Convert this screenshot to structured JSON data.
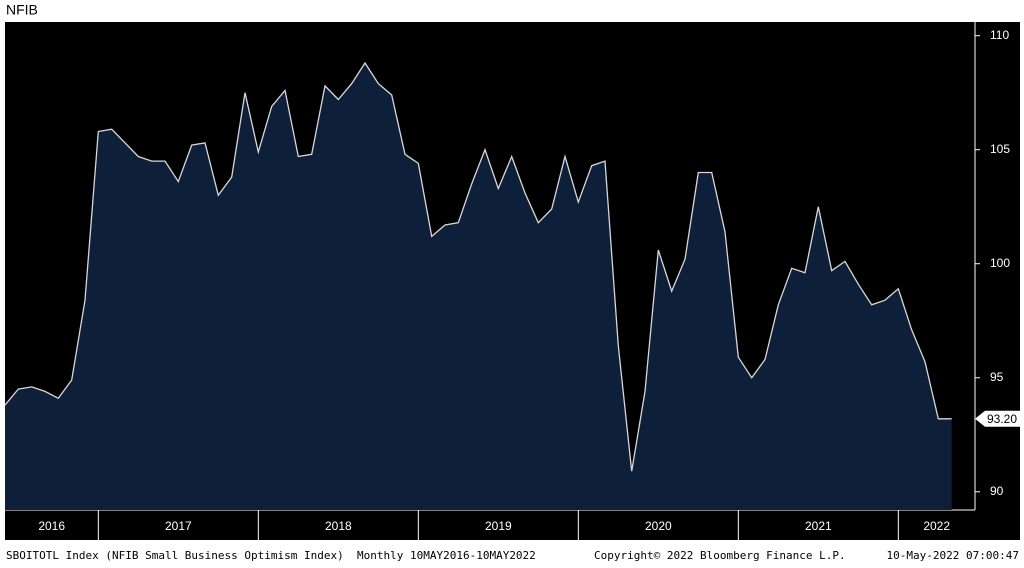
{
  "chart_data": {
    "type": "area",
    "title": "NFIB",
    "values": [
      93.8,
      94.5,
      94.6,
      94.4,
      94.1,
      94.9,
      98.4,
      105.8,
      105.9,
      105.3,
      104.7,
      104.5,
      104.5,
      103.6,
      105.2,
      105.3,
      103.0,
      103.8,
      107.5,
      104.9,
      106.9,
      107.6,
      104.7,
      104.8,
      107.8,
      107.2,
      107.9,
      108.8,
      107.9,
      107.4,
      104.8,
      104.4,
      101.2,
      101.7,
      101.8,
      103.5,
      105.0,
      103.3,
      104.7,
      103.1,
      101.8,
      102.4,
      104.7,
      102.7,
      104.3,
      104.5,
      96.4,
      90.9,
      94.4,
      100.6,
      98.8,
      100.2,
      104.0,
      104.0,
      101.4,
      95.9,
      95.0,
      95.8,
      98.2,
      99.8,
      99.6,
      102.5,
      99.7,
      100.1,
      99.1,
      98.2,
      98.4,
      98.9,
      97.1,
      95.7,
      93.2,
      93.2
    ],
    "year_labels": [
      "2016",
      "2017",
      "2018",
      "2019",
      "2020",
      "2021",
      "2022"
    ],
    "last_value_label": "93.20",
    "ylim": [
      89.2,
      110.6
    ],
    "yticks": [
      90,
      95,
      100,
      105,
      110
    ],
    "fill_color": "#0e1f3a",
    "line_color": "#d8d8d8",
    "footer_left": "SBOITOTL Index (NFIB Small Business Optimism Index)  Monthly 10MAY2016-10MAY2022",
    "footer_center": "Copyright© 2022 Bloomberg Finance L.P.",
    "footer_right": "10-May-2022 07:00:47"
  }
}
